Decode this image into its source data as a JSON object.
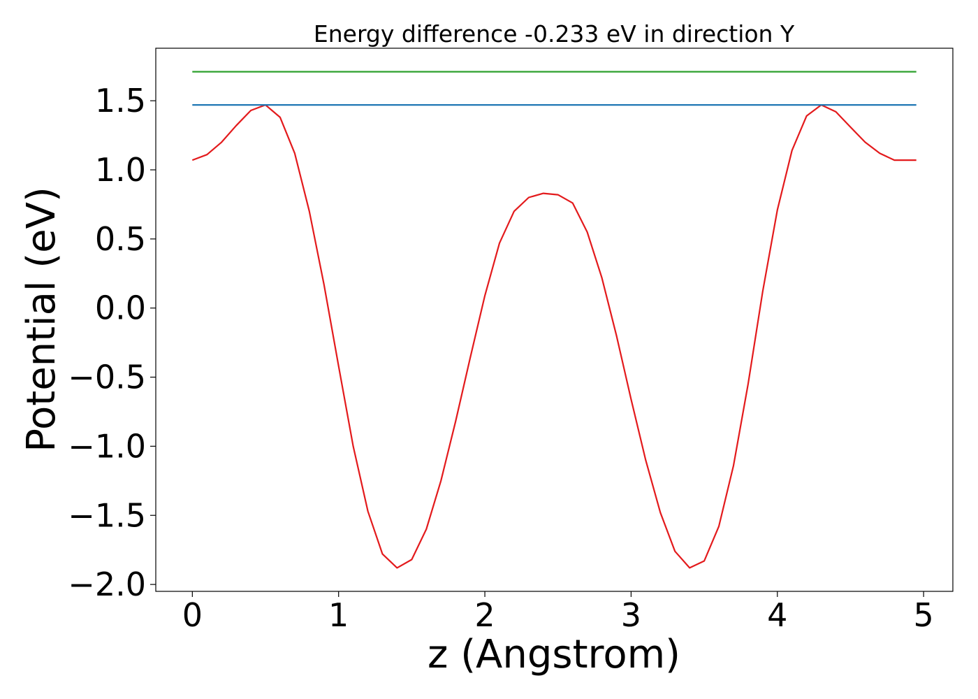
{
  "chart_data": {
    "type": "line",
    "title": "Energy difference -0.233 eV in direction Y",
    "xlabel": "z (Angstrom)",
    "ylabel": "Potential (eV)",
    "xlim": [
      -0.25,
      5.2
    ],
    "ylim": [
      -2.05,
      1.88
    ],
    "xticks": [
      0,
      1,
      2,
      3,
      4,
      5
    ],
    "xtick_labels": [
      "0",
      "1",
      "2",
      "3",
      "4",
      "5"
    ],
    "yticks": [
      -2.0,
      -1.5,
      -1.0,
      -0.5,
      0.0,
      0.5,
      1.0,
      1.5
    ],
    "ytick_labels": [
      "−2.0",
      "−1.5",
      "−1.0",
      "−0.5",
      "0.0",
      "0.5",
      "1.0",
      "1.5"
    ],
    "grid": false,
    "series": [
      {
        "color": "#e31a1c",
        "x": [
          0.0,
          0.1,
          0.2,
          0.3,
          0.4,
          0.5,
          0.6,
          0.7,
          0.8,
          0.9,
          1.0,
          1.1,
          1.2,
          1.3,
          1.4,
          1.5,
          1.6,
          1.7,
          1.8,
          1.9,
          2.0,
          2.1,
          2.2,
          2.3,
          2.4,
          2.5,
          2.6,
          2.7,
          2.8,
          2.9,
          3.0,
          3.1,
          3.2,
          3.3,
          3.4,
          3.5,
          3.6,
          3.7,
          3.8,
          3.9,
          4.0,
          4.1,
          4.2,
          4.3,
          4.4,
          4.5,
          4.6,
          4.7,
          4.8,
          4.95
        ],
        "y": [
          1.07,
          1.11,
          1.2,
          1.32,
          1.43,
          1.47,
          1.38,
          1.12,
          0.7,
          0.17,
          -0.42,
          -1.0,
          -1.47,
          -1.78,
          -1.88,
          -1.82,
          -1.6,
          -1.25,
          -0.82,
          -0.36,
          0.09,
          0.47,
          0.7,
          0.8,
          0.83,
          0.82,
          0.76,
          0.55,
          0.22,
          -0.2,
          -0.66,
          -1.1,
          -1.48,
          -1.76,
          -1.88,
          -1.83,
          -1.58,
          -1.14,
          -0.55,
          0.12,
          0.71,
          1.14,
          1.39,
          1.47,
          1.42,
          1.31,
          1.2,
          1.12,
          1.07,
          1.07
        ]
      },
      {
        "color": "#1f77b4",
        "x": [
          0,
          4.95
        ],
        "y": [
          1.47,
          1.47
        ]
      },
      {
        "color": "#2ca02c",
        "x": [
          0,
          4.95
        ],
        "y": [
          1.71,
          1.71
        ]
      }
    ]
  }
}
